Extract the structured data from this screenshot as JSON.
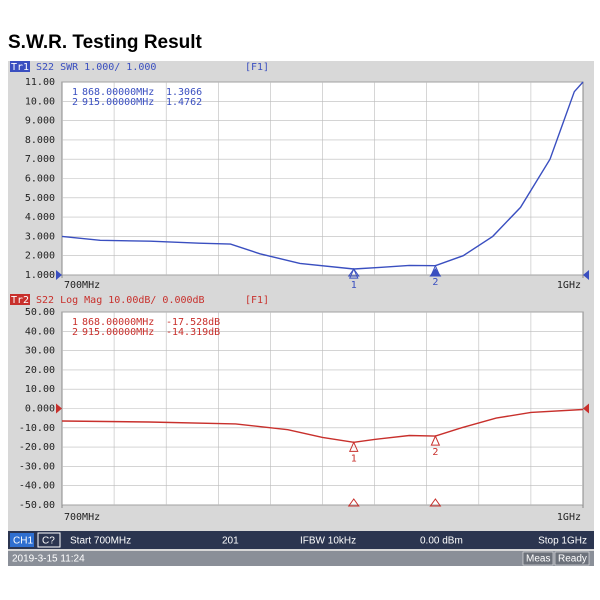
{
  "header": {
    "title": "S.W.R. Testing Result"
  },
  "chart_data": [
    {
      "type": "line",
      "trace": "Tr1",
      "title": "S22 SWR 1.000/ 1.000",
      "function": "[F1]",
      "color": "#3a4fc0",
      "x": [
        700,
        722,
        751,
        779,
        797,
        814,
        837,
        868,
        884,
        900,
        915,
        931,
        948,
        964,
        981,
        995,
        1000
      ],
      "values": [
        3.0,
        2.8,
        2.75,
        2.65,
        2.6,
        2.1,
        1.6,
        1.31,
        1.4,
        1.5,
        1.48,
        2.0,
        3.0,
        4.5,
        7.0,
        10.5,
        11.0
      ],
      "xlim": [
        700,
        1000
      ],
      "xticks": [
        {
          "value": 700,
          "label": "700MHz"
        },
        {
          "value": 1000,
          "label": "1GHz"
        }
      ],
      "ylim": [
        1,
        11
      ],
      "yticks": [
        {
          "value": 1,
          "label": "1.000"
        },
        {
          "value": 2,
          "label": "2.000"
        },
        {
          "value": 3,
          "label": "3.000"
        },
        {
          "value": 4,
          "label": "4.000"
        },
        {
          "value": 5,
          "label": "5.000"
        },
        {
          "value": 6,
          "label": "6.000"
        },
        {
          "value": 7,
          "label": "7.000"
        },
        {
          "value": 8,
          "label": "8.000"
        },
        {
          "value": 9,
          "label": "9.000"
        },
        {
          "value": 10,
          "label": "10.00"
        },
        {
          "value": 11,
          "label": "11.00"
        }
      ],
      "grid": true,
      "markers": [
        {
          "id": "1",
          "freq": "868.00000MHz",
          "x": 868,
          "value": 1.3066
        },
        {
          "id": "2",
          "freq": "915.00000MHz",
          "x": 915,
          "value": 1.4762
        }
      ]
    },
    {
      "type": "line",
      "trace": "Tr2",
      "title": "S22 Log Mag 10.00dB/ 0.000dB",
      "function": "[F1]",
      "color": "#c8302c",
      "x": [
        700,
        750,
        800,
        830,
        850,
        868,
        880,
        900,
        915,
        930,
        950,
        970,
        1000
      ],
      "values": [
        -6.5,
        -7,
        -8,
        -11,
        -15,
        -17.528,
        -16,
        -14,
        -14.319,
        -10,
        -5,
        -2,
        -0.5
      ],
      "xlim": [
        700,
        1000
      ],
      "xticks": [
        {
          "value": 700,
          "label": "700MHz"
        },
        {
          "value": 1000,
          "label": "1GHz"
        }
      ],
      "ylim": [
        -50,
        50
      ],
      "yticks": [
        {
          "value": 50,
          "label": "50.00"
        },
        {
          "value": 40,
          "label": "40.00"
        },
        {
          "value": 30,
          "label": "30.00"
        },
        {
          "value": 20,
          "label": "20.00"
        },
        {
          "value": 10,
          "label": "10.00"
        },
        {
          "value": 0,
          "label": "0.000"
        },
        {
          "value": -10,
          "label": "-10.00"
        },
        {
          "value": -20,
          "label": "-20.00"
        },
        {
          "value": -30,
          "label": "-30.00"
        },
        {
          "value": -40,
          "label": "-40.00"
        },
        {
          "value": -50,
          "label": "-50.00"
        }
      ],
      "grid": true,
      "markers": [
        {
          "id": "1",
          "freq": "868.00000MHz",
          "x": 868,
          "value": -17.528,
          "value_label": "-17.528dB"
        },
        {
          "id": "2",
          "freq": "915.00000MHz",
          "x": 915,
          "value": -14.319,
          "value_label": "-14.319dB"
        }
      ]
    }
  ],
  "status_bar": {
    "channel": "CH1",
    "cal": "C?",
    "start": "Start 700MHz",
    "points": "201",
    "ifbw": "IFBW 10kHz",
    "power": "0.00 dBm",
    "stop": "Stop 1GHz",
    "datetime": "2019-3-15 11:24",
    "mode": "Meas",
    "state": "Ready"
  }
}
